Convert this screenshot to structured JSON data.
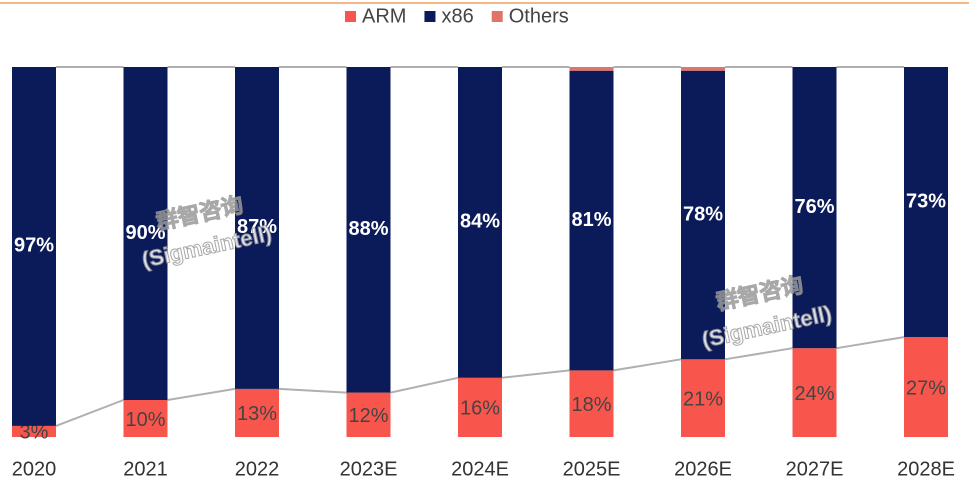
{
  "chart_data": {
    "type": "stacked_bar",
    "categories": [
      "2020",
      "2021",
      "2022",
      "2023E",
      "2024E",
      "2025E",
      "2026E",
      "2027E",
      "2028E"
    ],
    "series": [
      {
        "name": "ARM",
        "color": "#f8564c",
        "label_color": "#444444",
        "values": [
          3,
          10,
          13,
          12,
          16,
          18,
          21,
          24,
          27
        ],
        "value_labels": [
          "3%",
          "10%",
          "13%",
          "12%",
          "16%",
          "18%",
          "21%",
          "24%",
          "27%"
        ]
      },
      {
        "name": "x86",
        "color": "#0b1a58",
        "label_color": "#ffffff",
        "values": [
          97,
          90,
          87,
          88,
          84,
          81,
          78,
          76,
          73
        ],
        "value_labels": [
          "97%",
          "90%",
          "87%",
          "88%",
          "84%",
          "81%",
          "78%",
          "76%",
          "73%"
        ]
      },
      {
        "name": "Others",
        "color": "#e07466",
        "values": [
          0,
          0,
          0,
          0,
          0,
          1,
          1,
          0,
          0
        ]
      }
    ],
    "ylim": [
      0,
      100
    ],
    "legend": "top",
    "watermark": [
      "群智咨询",
      "(Sigmaintell)"
    ]
  }
}
